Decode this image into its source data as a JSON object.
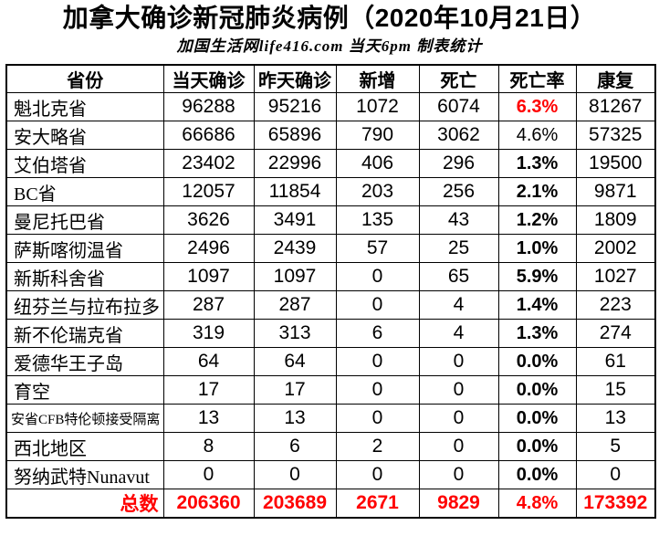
{
  "title": "加拿大确诊新冠肺炎病例（2020年10月21日）",
  "subtitle": "加国生活网life416.com 当天6pm 制表统计",
  "colors": {
    "highlight_red": "#ff0000",
    "text": "#000000",
    "border": "#000000",
    "background": "#ffffff"
  },
  "table": {
    "headers": [
      "省份",
      "当天确诊",
      "昨天确诊",
      "新增",
      "死亡",
      "死亡率",
      "康复"
    ],
    "column_keys": [
      "province",
      "today",
      "yesterday",
      "new",
      "deaths",
      "rate",
      "recovered"
    ],
    "rows": [
      {
        "province": "魁北克省",
        "today": "96288",
        "yesterday": "95216",
        "new": "1072",
        "deaths": "6074",
        "rate": "6.3%",
        "recovered": "81267",
        "rate_bold": true,
        "rate_red": true
      },
      {
        "province": "安大略省",
        "today": "66686",
        "yesterday": "65896",
        "new": "790",
        "deaths": "3062",
        "rate": "4.6%",
        "recovered": "57325",
        "rate_bold": false,
        "rate_red": false
      },
      {
        "province": "艾伯塔省",
        "today": "23402",
        "yesterday": "22996",
        "new": "406",
        "deaths": "296",
        "rate": "1.3%",
        "recovered": "19500",
        "rate_bold": true,
        "rate_red": false
      },
      {
        "province": "BC省",
        "today": "12057",
        "yesterday": "11854",
        "new": "203",
        "deaths": "256",
        "rate": "2.1%",
        "recovered": "9871",
        "rate_bold": true,
        "rate_red": false
      },
      {
        "province": "曼尼托巴省",
        "today": "3626",
        "yesterday": "3491",
        "new": "135",
        "deaths": "43",
        "rate": "1.2%",
        "recovered": "1809",
        "rate_bold": true,
        "rate_red": false
      },
      {
        "province": "萨斯喀彻温省",
        "today": "2496",
        "yesterday": "2439",
        "new": "57",
        "deaths": "25",
        "rate": "1.0%",
        "recovered": "2002",
        "rate_bold": true,
        "rate_red": false
      },
      {
        "province": "新斯科舍省",
        "today": "1097",
        "yesterday": "1097",
        "new": "0",
        "deaths": "65",
        "rate": "5.9%",
        "recovered": "1027",
        "rate_bold": true,
        "rate_red": false
      },
      {
        "province": "纽芬兰与拉布拉多",
        "today": "287",
        "yesterday": "287",
        "new": "0",
        "deaths": "4",
        "rate": "1.4%",
        "recovered": "223",
        "rate_bold": true,
        "rate_red": false
      },
      {
        "province": "新不伦瑞克省",
        "today": "319",
        "yesterday": "313",
        "new": "6",
        "deaths": "4",
        "rate": "1.3%",
        "recovered": "274",
        "rate_bold": true,
        "rate_red": false
      },
      {
        "province": "爱德华王子岛",
        "today": "64",
        "yesterday": "64",
        "new": "0",
        "deaths": "0",
        "rate": "0.0%",
        "recovered": "61",
        "rate_bold": true,
        "rate_red": false
      },
      {
        "province": "育空",
        "today": "17",
        "yesterday": "17",
        "new": "0",
        "deaths": "0",
        "rate": "0.0%",
        "recovered": "15",
        "rate_bold": true,
        "rate_red": false
      },
      {
        "province": "安省CFB特伦顿接受隔离",
        "today": "13",
        "yesterday": "13",
        "new": "0",
        "deaths": "0",
        "rate": "0.0%",
        "recovered": "13",
        "rate_bold": true,
        "rate_red": false,
        "province_small": true
      },
      {
        "province": "西北地区",
        "today": "8",
        "yesterday": "6",
        "new": "2",
        "deaths": "0",
        "rate": "0.0%",
        "recovered": "5",
        "rate_bold": true,
        "rate_red": false
      },
      {
        "province": "努纳武特Nunavut",
        "today": "0",
        "yesterday": "0",
        "new": "0",
        "deaths": "0",
        "rate": "0.0%",
        "recovered": "0",
        "rate_bold": true,
        "rate_red": false
      }
    ],
    "total": {
      "label": "总数",
      "today": "206360",
      "yesterday": "203689",
      "new": "2671",
      "deaths": "9829",
      "rate": "4.8%",
      "recovered": "173392"
    }
  }
}
